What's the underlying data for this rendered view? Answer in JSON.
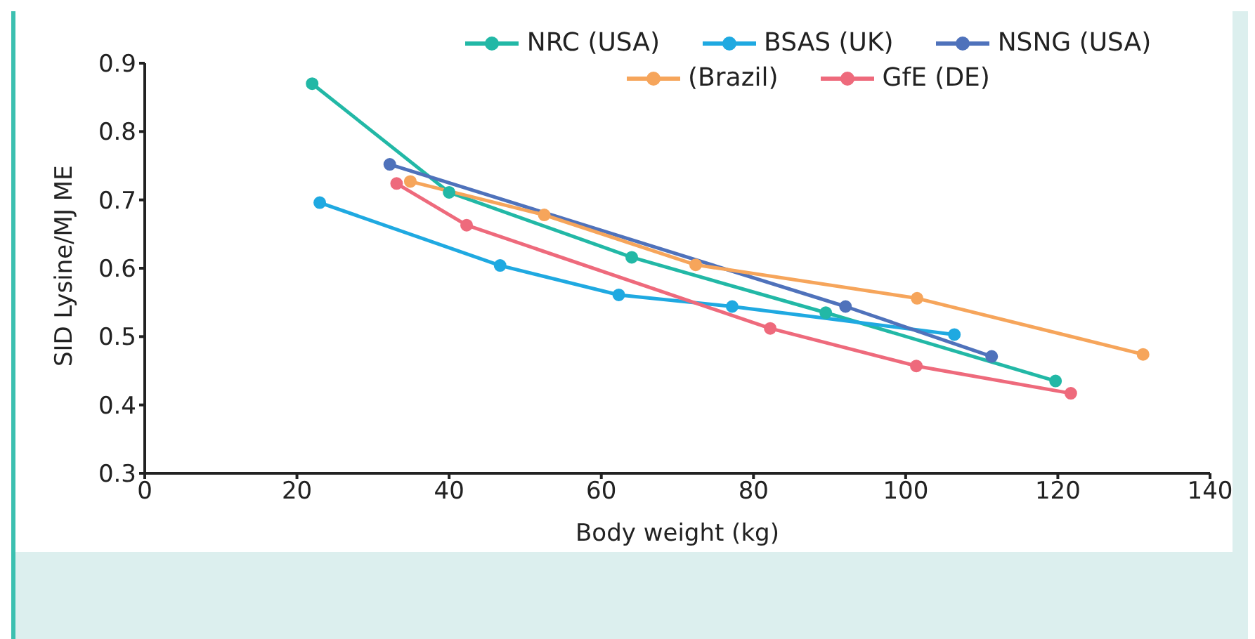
{
  "chart_data": {
    "type": "line",
    "xlabel": "Body weight (kg)",
    "ylabel": "SID Lysine/MJ ME",
    "xlim": [
      0,
      140
    ],
    "xticks": [
      0,
      20,
      40,
      60,
      80,
      100,
      120,
      140
    ],
    "ylim": [
      0.3,
      0.9
    ],
    "yticks": [
      0.3,
      0.4,
      0.5,
      0.6,
      0.7,
      0.8,
      0.9
    ],
    "grid": false,
    "legend": "top right",
    "marker": "circle",
    "line_style": "solid",
    "series": [
      {
        "name": "NRC (USA)",
        "color": "#22b8a6",
        "x": [
          22,
          40,
          64,
          89.5,
          119.7
        ],
        "values": [
          0.87,
          0.711,
          0.616,
          0.535,
          0.435
        ]
      },
      {
        "name": "BSAS (UK)",
        "color": "#1fa9e1",
        "x": [
          23,
          46.7,
          62.3,
          77.2,
          106.4
        ],
        "values": [
          0.696,
          0.604,
          0.561,
          0.544,
          0.503
        ]
      },
      {
        "name": "NSNG (USA)",
        "color": "#4f72bb",
        "x": [
          32.2,
          92.1,
          111.3
        ],
        "values": [
          0.752,
          0.544,
          0.471
        ]
      },
      {
        "name": "(Brazil)",
        "color": "#f6a55b",
        "x": [
          34.9,
          52.5,
          72.4,
          101.5,
          131.2
        ],
        "values": [
          0.727,
          0.678,
          0.605,
          0.556,
          0.474
        ]
      },
      {
        "name": "GfE (DE)",
        "color": "#ee6a7c",
        "x": [
          33.1,
          42.3,
          82.2,
          101.4,
          121.7
        ],
        "values": [
          0.724,
          0.663,
          0.512,
          0.457,
          0.417
        ]
      }
    ]
  }
}
